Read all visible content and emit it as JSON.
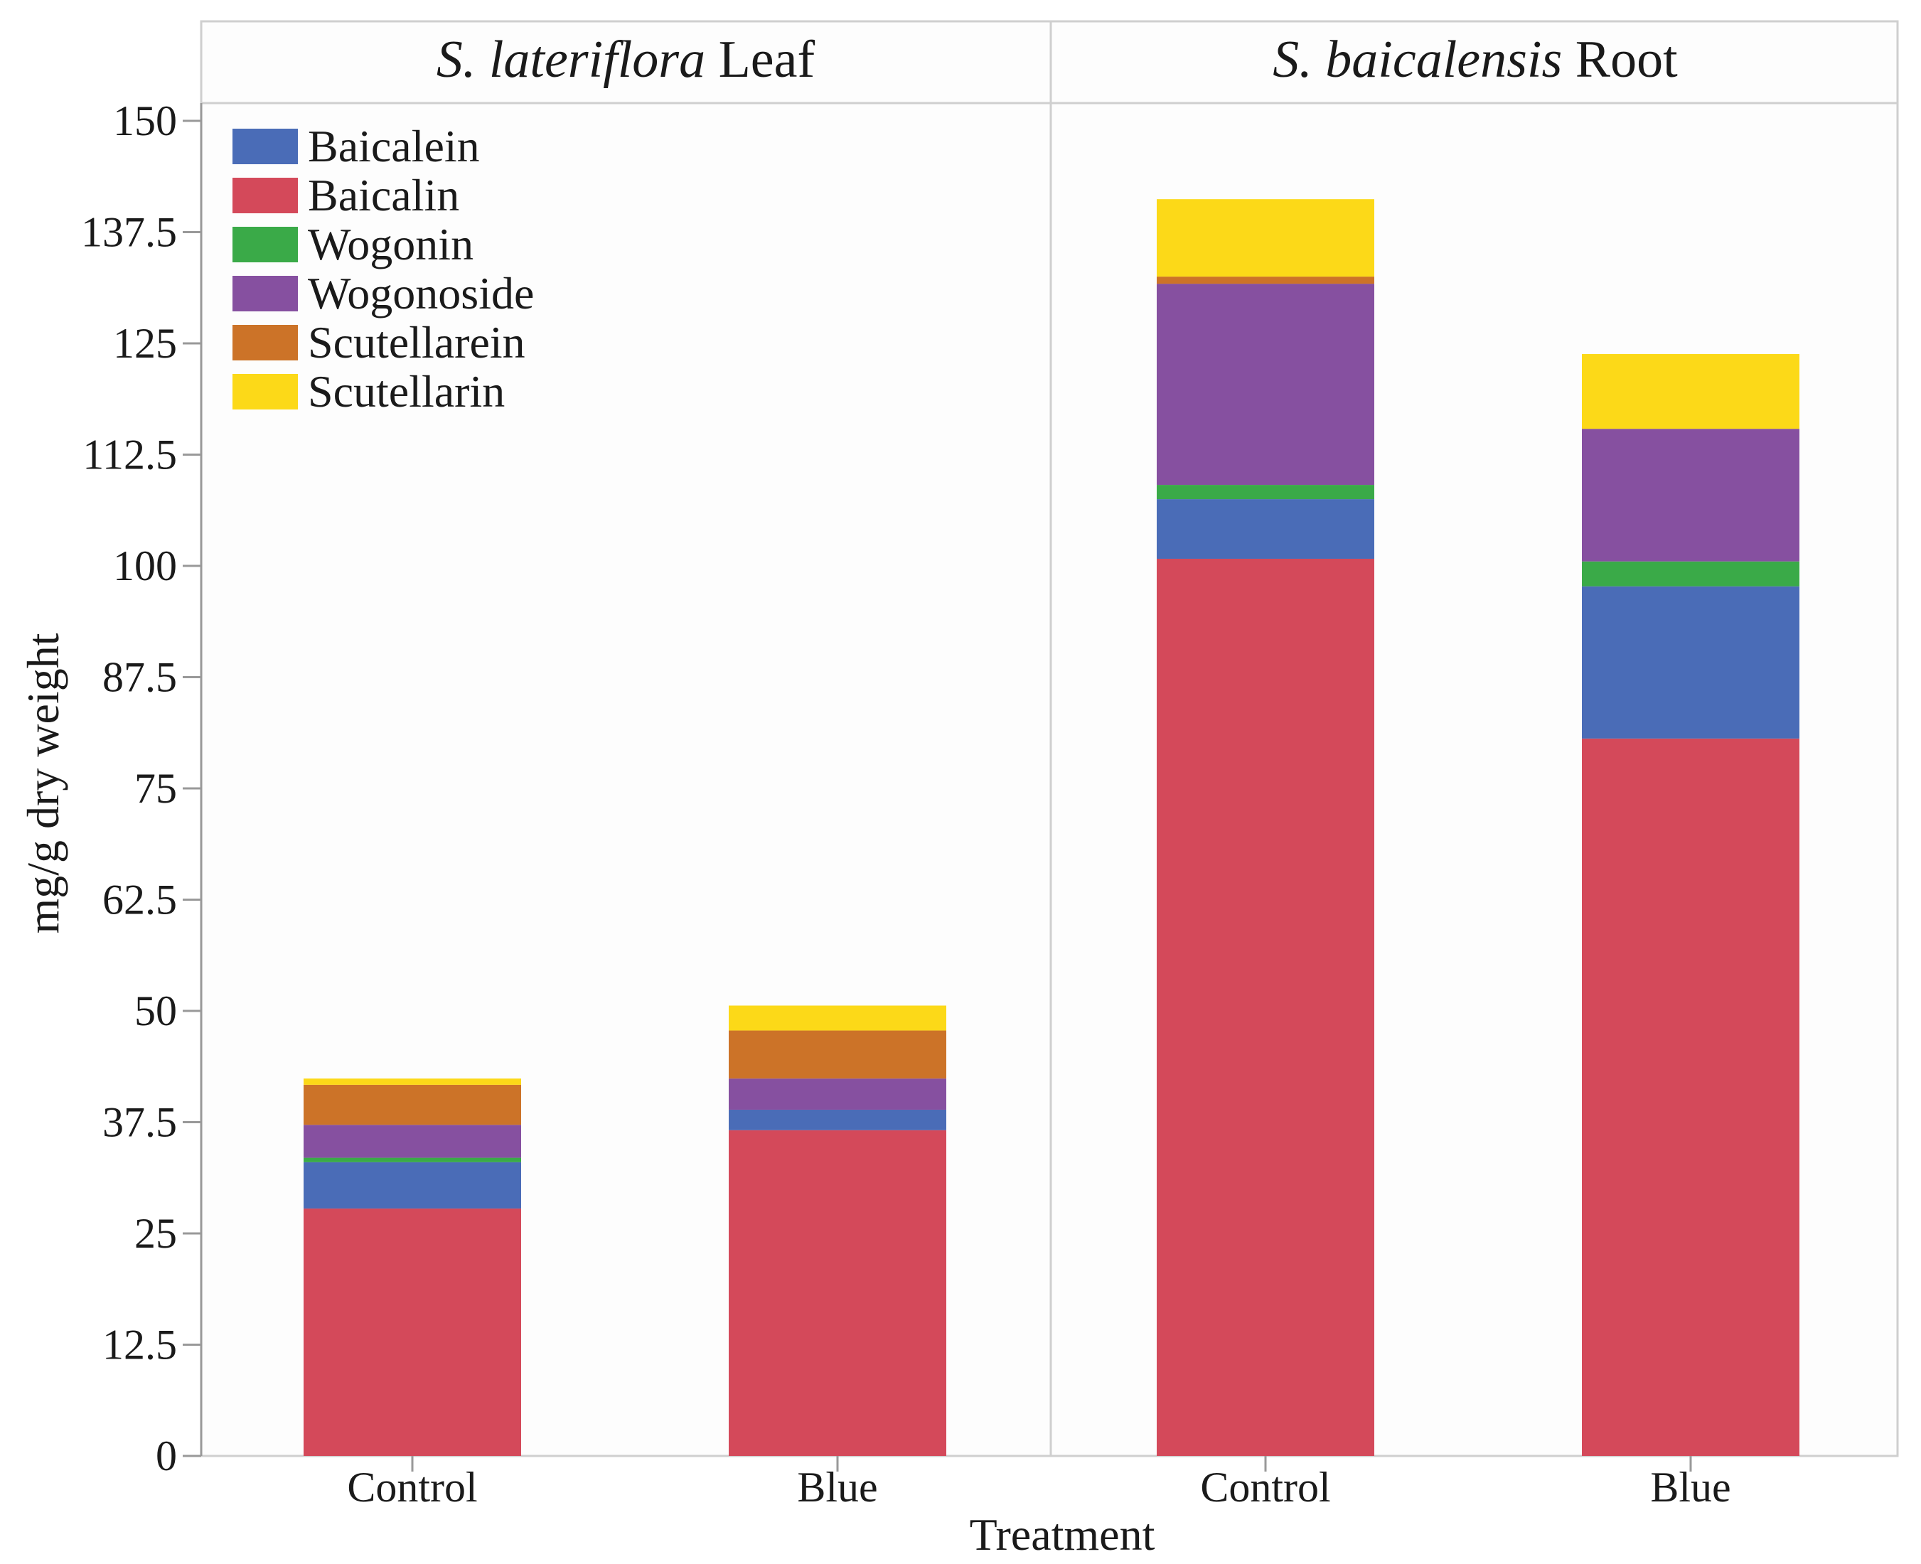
{
  "chart_data": {
    "type": "bar",
    "stacked": true,
    "ylabel": "mg/g dry weight",
    "xlabel": "Treatment",
    "ylim": [
      0,
      150
    ],
    "yticks": [
      0,
      12.5,
      25,
      37.5,
      50,
      62.5,
      75,
      87.5,
      100,
      112.5,
      125,
      137.5,
      150
    ],
    "ytick_labels": [
      "0",
      "12.5",
      "25",
      "37.5",
      "50",
      "62.5",
      "75",
      "87.5",
      "100",
      "112.5",
      "125",
      "137.5",
      "150"
    ],
    "legend_position": "top-left",
    "panels": [
      {
        "title_italic": "S. lateriflora",
        "title_rest": " Leaf",
        "categories": [
          "Control",
          "Blue"
        ],
        "series": [
          {
            "name": "Baicalin",
            "values": [
              27.8,
              36.6
            ]
          },
          {
            "name": "Baicalein",
            "values": [
              5.2,
              2.3
            ]
          },
          {
            "name": "Wogonin",
            "values": [
              0.5,
              0.0
            ]
          },
          {
            "name": "Wogonoside",
            "values": [
              3.7,
              3.5
            ]
          },
          {
            "name": "Scutellarein",
            "values": [
              4.5,
              5.4
            ]
          },
          {
            "name": "Scutellarin",
            "values": [
              0.7,
              2.8
            ]
          }
        ]
      },
      {
        "title_italic": "S. baicalensis",
        "title_rest": " Root",
        "categories": [
          "Control",
          "Blue"
        ],
        "series": [
          {
            "name": "Baicalin",
            "values": [
              100.8,
              80.6
            ]
          },
          {
            "name": "Baicalein",
            "values": [
              6.7,
              17.1
            ]
          },
          {
            "name": "Wogonin",
            "values": [
              1.6,
              2.8
            ]
          },
          {
            "name": "Wogonoside",
            "values": [
              22.6,
              14.9
            ]
          },
          {
            "name": "Scutellarein",
            "values": [
              0.8,
              0.0
            ]
          },
          {
            "name": "Scutellarin",
            "values": [
              8.7,
              8.4
            ]
          }
        ]
      }
    ],
    "legend": [
      "Baicalein",
      "Baicalin",
      "Wogonin",
      "Wogonoside",
      "Scutellarein",
      "Scutellarin"
    ],
    "colors": {
      "Baicalein": "#4a6cb7",
      "Baicalin": "#d4495a",
      "Wogonin": "#3aaa48",
      "Wogonoside": "#8650a0",
      "Scutellarein": "#cc7328",
      "Scutellarin": "#fcd918"
    }
  }
}
